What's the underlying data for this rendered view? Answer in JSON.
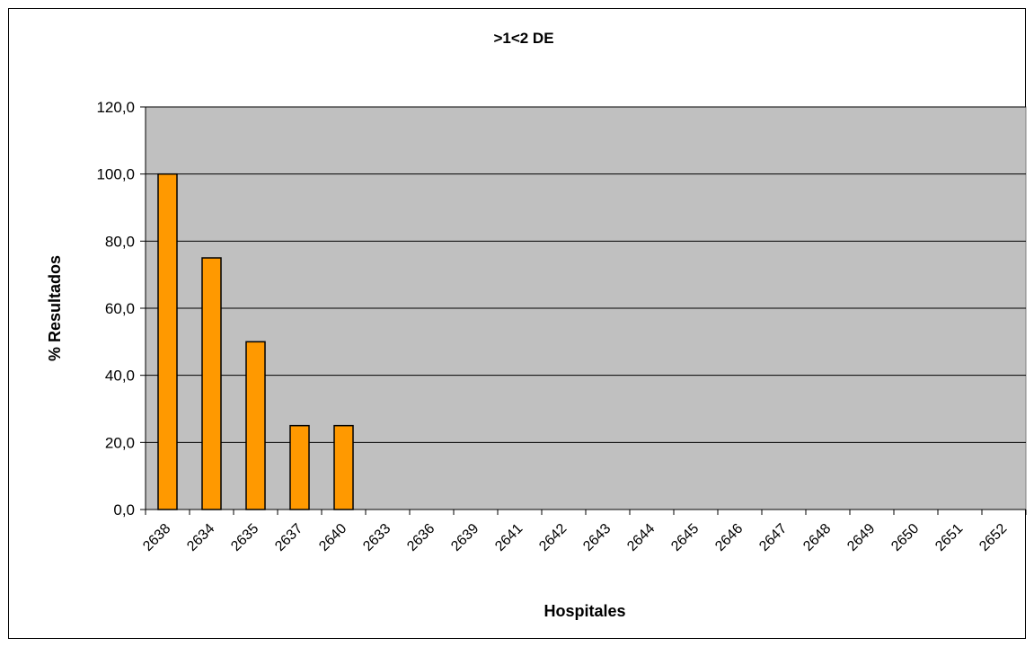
{
  "chart_data": {
    "type": "bar",
    "title": ">1<2 DE",
    "xlabel": "Hospitales",
    "ylabel": "% Resultados",
    "ylim": [
      0,
      120
    ],
    "yticks": [
      "0,0",
      "20,0",
      "40,0",
      "60,0",
      "80,0",
      "100,0",
      "120,0"
    ],
    "ytick_values": [
      0,
      20,
      40,
      60,
      80,
      100,
      120
    ],
    "categories": [
      "2638",
      "2634",
      "2635",
      "2637",
      "2640",
      "2633",
      "2636",
      "2639",
      "2641",
      "2642",
      "2643",
      "2644",
      "2645",
      "2646",
      "2647",
      "2648",
      "2649",
      "2650",
      "2651",
      "2652"
    ],
    "values": [
      100,
      75,
      50,
      25,
      25,
      0,
      0,
      0,
      0,
      0,
      0,
      0,
      0,
      0,
      0,
      0,
      0,
      0,
      0,
      0
    ],
    "grid": true,
    "legend": "none",
    "colors": {
      "bar_fill": "#FF9900",
      "bar_stroke": "#000000",
      "plot_background": "#C0C0C0",
      "gridline": "#000000"
    }
  }
}
